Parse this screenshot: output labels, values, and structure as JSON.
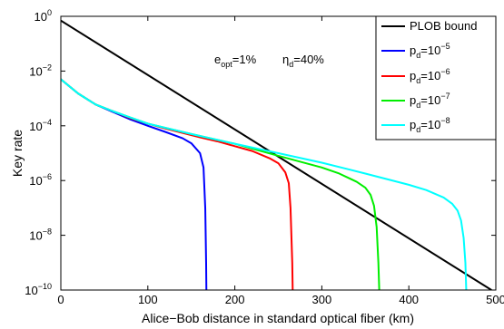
{
  "chart_data": {
    "type": "line",
    "xlabel": "Alice−Bob distance in standard optical fiber (km)",
    "ylabel": "Key rate",
    "x_scale": "linear",
    "y_scale": "log",
    "xlim": [
      0,
      500
    ],
    "ylim": [
      1e-10,
      1
    ],
    "x_ticks": [
      0,
      100,
      200,
      300,
      400,
      500
    ],
    "x_tick_labels": [
      "0",
      "100",
      "200",
      "300",
      "400",
      "500"
    ],
    "y_ticks": [
      1e-10,
      1e-08,
      1e-06,
      0.0001,
      0.01,
      1
    ],
    "y_tick_labels": [
      {
        "base": "10",
        "exp": "−10"
      },
      {
        "base": "10",
        "exp": "−8"
      },
      {
        "base": "10",
        "exp": "−6"
      },
      {
        "base": "10",
        "exp": "−4"
      },
      {
        "base": "10",
        "exp": "−2"
      },
      {
        "base": "10",
        "exp": "0"
      }
    ],
    "grid": false,
    "legend_position": "top-right",
    "annotations": [
      {
        "symbol": "e",
        "sub": "opt",
        "rest": "=1%"
      },
      {
        "symbol": "η",
        "sub": "d",
        "rest": "=40%"
      }
    ],
    "series": [
      {
        "name": "PLOB bound",
        "label": {
          "text": "PLOB bound"
        },
        "color": "#000000",
        "x": [
          0,
          495
        ],
        "y": [
          0.7,
          1e-10
        ]
      },
      {
        "name": "p_d=10^-5",
        "label": {
          "base": "p",
          "sub": "d",
          "mid": "=10",
          "exp": "−5"
        },
        "color": "#0000ff",
        "x": [
          0,
          20,
          40,
          60,
          80,
          100,
          120,
          140,
          150,
          160,
          164,
          166,
          167,
          167.3
        ],
        "y": [
          0.005,
          0.0015,
          0.0006,
          0.00032,
          0.00017,
          0.0001,
          6e-05,
          3.5e-05,
          2.3e-05,
          1e-05,
          3e-06,
          1e-07,
          1e-09,
          1e-10
        ]
      },
      {
        "name": "p_d=10^-6",
        "label": {
          "base": "p",
          "sub": "d",
          "mid": "=10",
          "exp": "−6"
        },
        "color": "#ff0000",
        "x": [
          0,
          20,
          40,
          60,
          80,
          100,
          120,
          140,
          160,
          180,
          200,
          220,
          240,
          250,
          258,
          262,
          264,
          266,
          266.5
        ],
        "y": [
          0.005,
          0.0015,
          0.0006,
          0.00034,
          0.00019,
          0.00012,
          8e-05,
          5.5e-05,
          3.8e-05,
          2.7e-05,
          1.8e-05,
          1.2e-05,
          6.5e-06,
          4.3e-06,
          2e-06,
          8e-07,
          1e-07,
          1e-09,
          1e-10
        ]
      },
      {
        "name": "p_d=10^-7",
        "label": {
          "base": "p",
          "sub": "d",
          "mid": "=10",
          "exp": "−7"
        },
        "color": "#00ee00",
        "x": [
          0,
          20,
          40,
          60,
          80,
          100,
          150,
          200,
          250,
          300,
          320,
          340,
          350,
          356,
          360,
          363,
          365,
          366
        ],
        "y": [
          0.005,
          0.0015,
          0.0006,
          0.00034,
          0.0002,
          0.00012,
          5e-05,
          2.2e-05,
          8e-06,
          3e-06,
          1.8e-06,
          9e-07,
          5.5e-07,
          3e-07,
          1.2e-07,
          2e-08,
          1e-09,
          1e-10
        ]
      },
      {
        "name": "p_d=10^-8",
        "label": {
          "base": "p",
          "sub": "d",
          "mid": "=10",
          "exp": "−8"
        },
        "color": "#00ffff",
        "x": [
          0,
          20,
          40,
          60,
          80,
          100,
          150,
          200,
          250,
          300,
          350,
          400,
          420,
          440,
          450,
          456,
          460,
          463,
          465,
          466
        ],
        "y": [
          0.005,
          0.0015,
          0.0006,
          0.00034,
          0.0002,
          0.00012,
          5e-05,
          2.2e-05,
          1e-05,
          4.5e-06,
          1.8e-06,
          7e-07,
          4.5e-07,
          2.4e-07,
          1.4e-07,
          8e-08,
          3.5e-08,
          8e-09,
          1e-09,
          1e-10
        ]
      }
    ]
  }
}
